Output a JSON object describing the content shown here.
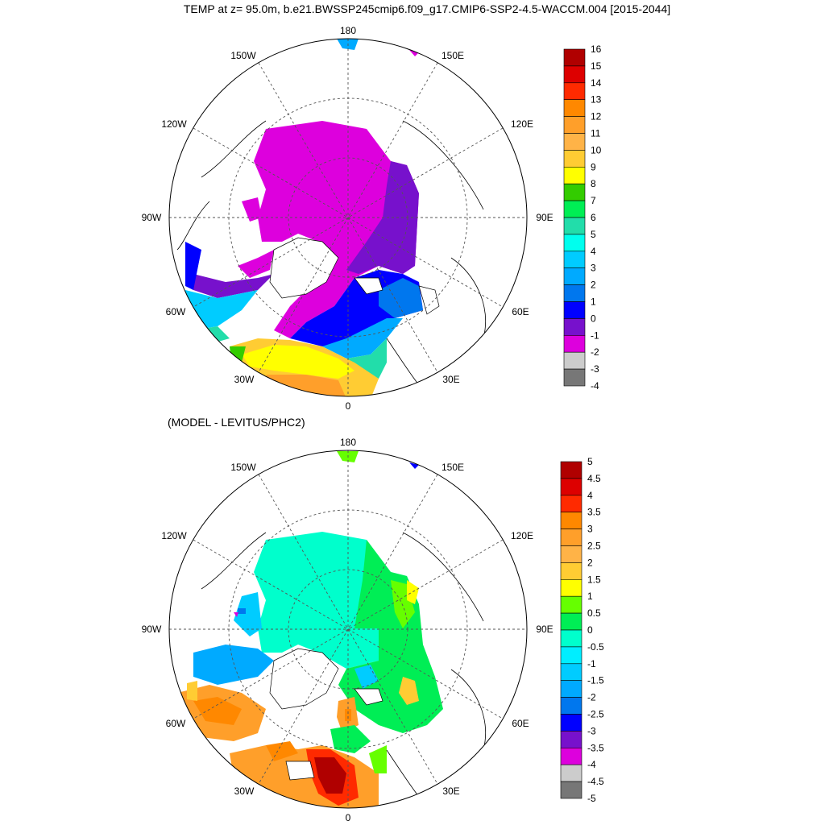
{
  "title": "TEMP at z=  95.0m, b.e21.BWSSP245cmip6.f09_g17.CMIP6-SSP2-4.5-WACCM.004 [2015-2044]",
  "panel2_title": "(MODEL - LEVITUS/PHC2)",
  "lon_labels": {
    "top": "180",
    "tl": "150W",
    "tr": "150E",
    "ul": "120W",
    "ur": "120E",
    "l": "90W",
    "r": "90E",
    "ll": "60W",
    "lr": "60E",
    "bl": "30W",
    "br": "30E",
    "bottom": "0"
  },
  "colorbar1": {
    "labels": [
      "16",
      "15",
      "14",
      "13",
      "12",
      "11",
      "10",
      "9",
      "8",
      "7",
      "6",
      "5",
      "4",
      "3",
      "2",
      "1",
      "0",
      "-1",
      "-2",
      "-3",
      "-4"
    ],
    "colors": [
      "#b00000",
      "#dd0000",
      "#ff2a00",
      "#ff8800",
      "#ff9f2a",
      "#ffb347",
      "#ffcc33",
      "#ffff00",
      "#33cc00",
      "#00ee55",
      "#22ddaa",
      "#00ffee",
      "#00ccff",
      "#00aaff",
      "#0077ee",
      "#0000ff",
      "#7711cc",
      "#dd00dd",
      "#cccccc",
      "#777777"
    ]
  },
  "colorbar2": {
    "labels": [
      "5",
      "4.5",
      "4",
      "3.5",
      "3",
      "2.5",
      "2",
      "1.5",
      "1",
      "0.5",
      "0",
      "-0.5",
      "-1",
      "-1.5",
      "-2",
      "-2.5",
      "-3",
      "-3.5",
      "-4",
      "-4.5",
      "-5"
    ],
    "colors": [
      "#b00000",
      "#dd0000",
      "#ff2a00",
      "#ff8800",
      "#ff9f2a",
      "#ffb347",
      "#ffcc33",
      "#ffff00",
      "#66ff00",
      "#00ee55",
      "#00ffcc",
      "#00eeff",
      "#00ccff",
      "#00aaff",
      "#0077ee",
      "#0000ff",
      "#7711cc",
      "#dd00dd",
      "#cccccc",
      "#777777"
    ]
  }
}
